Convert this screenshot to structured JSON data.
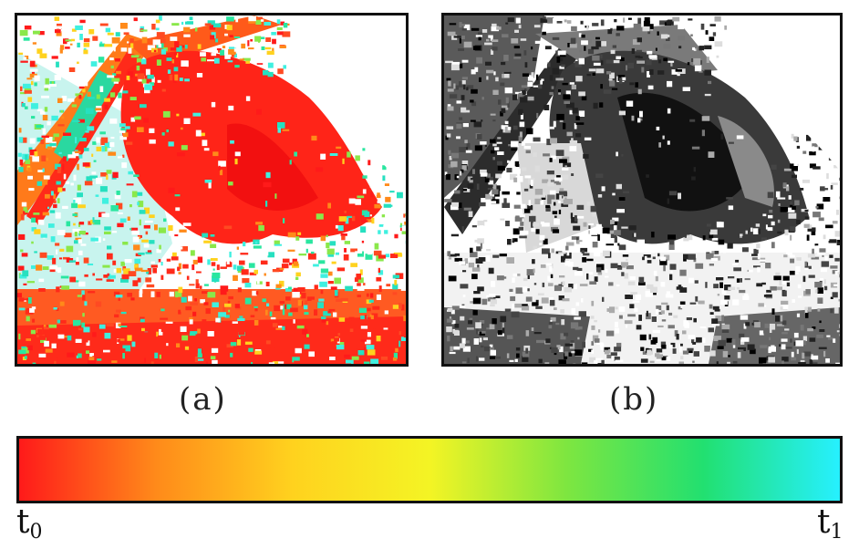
{
  "captions": {
    "a": "(a)",
    "b": "(b)"
  },
  "colorbar": {
    "start_base": "t",
    "start_sub": "0",
    "end_base": "t",
    "end_sub": "1",
    "stops": [
      "#ff1a1a",
      "#ff8a1a",
      "#ffd21e",
      "#f4f424",
      "#7ee640",
      "#22e070",
      "#26f0ff"
    ]
  },
  "panels": {
    "a": {
      "style": "color time-map",
      "dominant": "#ff2a1a"
    },
    "b": {
      "style": "grayscale map"
    }
  }
}
